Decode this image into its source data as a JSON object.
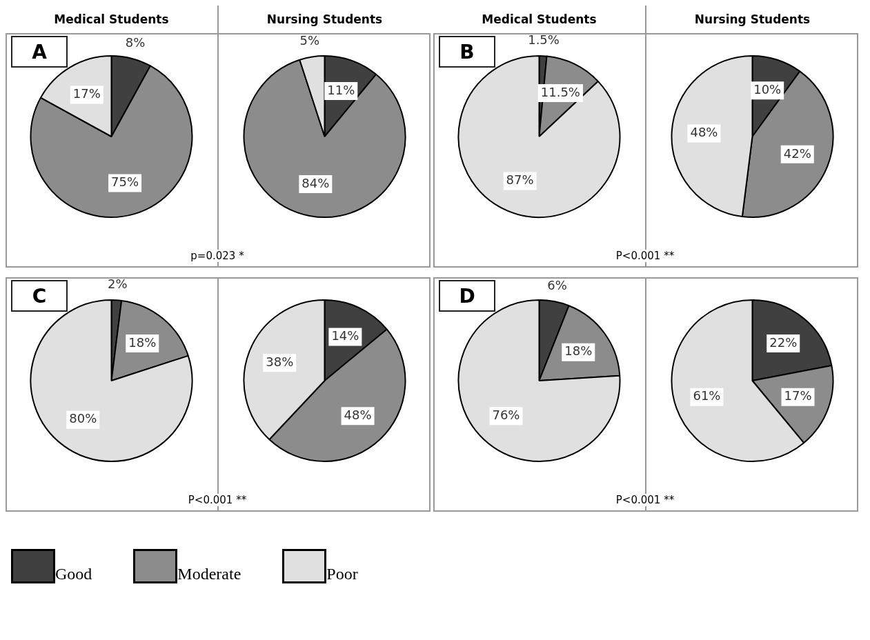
{
  "chart_data": [
    {
      "type": "pie",
      "title": "Medical Students",
      "categories": [
        "Good",
        "Moderate",
        "Poor"
      ],
      "values": [
        8,
        75,
        17
      ],
      "value_labels": [
        "8%",
        "75%",
        "17%"
      ],
      "colors": [
        "#404040",
        "#8c8c8c",
        "#e0e0e0"
      ],
      "annotations": [
        "A",
        "p=0.023 *"
      ],
      "legend": "bottom"
    },
    {
      "type": "pie",
      "title": "Nursing Students",
      "categories": [
        null,
        null,
        null
      ],
      "values": [
        11,
        84,
        5
      ],
      "value_labels": [
        "11%",
        "84%",
        "5%"
      ],
      "colors": [
        "#404040",
        "#8c8c8c",
        "#e0e0e0"
      ]
    },
    {
      "type": "pie",
      "title": "Medical Students",
      "categories": [
        null,
        null,
        null
      ],
      "values": [
        1.5,
        11.5,
        87
      ],
      "value_labels": [
        "1.5%",
        "11.5%",
        "87%"
      ],
      "colors": [
        "#404040",
        "#8c8c8c",
        "#e0e0e0"
      ],
      "annotations": [
        "B",
        "P<0.001 **"
      ]
    },
    {
      "type": "pie",
      "title": "Nursing Students",
      "categories": [
        null,
        null,
        null
      ],
      "values": [
        10,
        42,
        48
      ],
      "value_labels": [
        "10%",
        "42%",
        "48%"
      ],
      "colors": [
        "#404040",
        "#8c8c8c",
        "#e0e0e0"
      ]
    },
    {
      "type": "pie",
      "categories": [
        null,
        null,
        null
      ],
      "values": [
        2,
        18,
        80
      ],
      "value_labels": [
        "2%",
        "18%",
        "80%"
      ],
      "colors": [
        "#404040",
        "#8c8c8c",
        "#e0e0e0"
      ],
      "annotations": [
        "C",
        "P<0.001 **"
      ]
    },
    {
      "type": "pie",
      "categories": [
        null,
        null,
        null
      ],
      "values": [
        14,
        48,
        38
      ],
      "value_labels": [
        "14%",
        "48%",
        "38%"
      ],
      "colors": [
        "#404040",
        "#8c8c8c",
        "#e0e0e0"
      ]
    },
    {
      "type": "pie",
      "categories": [
        null,
        null,
        null
      ],
      "values": [
        6,
        18,
        76
      ],
      "value_labels": [
        "6%",
        "18%",
        "76%"
      ],
      "colors": [
        "#404040",
        "#8c8c8c",
        "#e0e0e0"
      ],
      "annotations": [
        "D",
        "P<0.001 **"
      ]
    },
    {
      "type": "pie",
      "categories": [
        null,
        null,
        null
      ],
      "values": [
        22,
        17,
        61
      ],
      "value_labels": [
        "22%",
        "17%",
        "61%"
      ],
      "colors": [
        "#404040",
        "#8c8c8c",
        "#e0e0e0"
      ]
    }
  ]
}
